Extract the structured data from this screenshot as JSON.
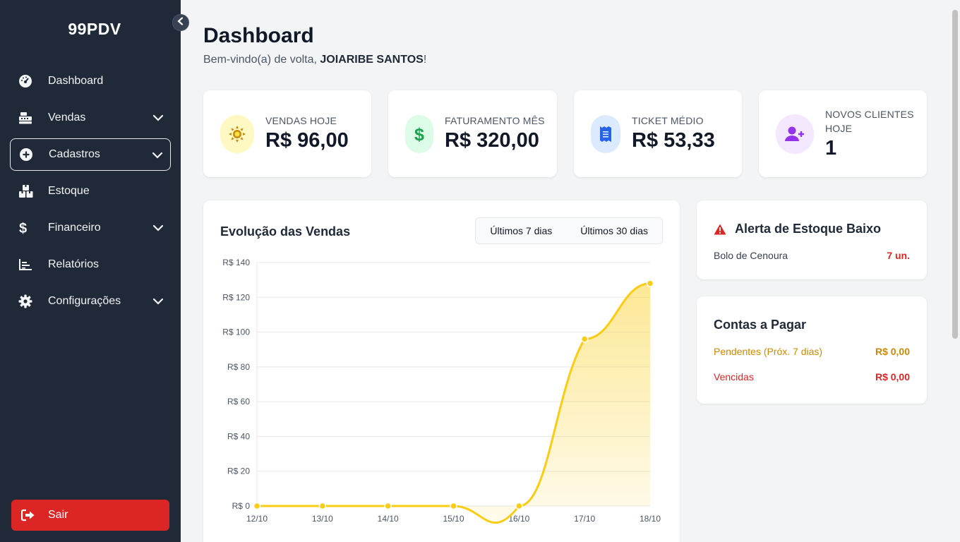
{
  "sidebar": {
    "brand": "99PDV",
    "items": [
      {
        "label": "Dashboard",
        "icon": "gauge-icon"
      },
      {
        "label": "Vendas",
        "icon": "cash-register-icon",
        "expandable": true
      },
      {
        "label": "Cadastros",
        "icon": "plus-circle-icon",
        "expandable": true,
        "active": true
      },
      {
        "label": "Estoque",
        "icon": "boxes-icon"
      },
      {
        "label": "Financeiro",
        "icon": "dollar-icon",
        "expandable": true
      },
      {
        "label": "Relatórios",
        "icon": "chart-icon"
      },
      {
        "label": "Configurações",
        "icon": "gear-icon",
        "expandable": true
      }
    ],
    "logout": "Sair"
  },
  "header": {
    "title": "Dashboard",
    "welcome_prefix": "Bem-vindo(a) de volta, ",
    "user_name": "JOIARIBE SANTOS",
    "welcome_suffix": "!"
  },
  "stats": [
    {
      "label": "VENDAS HOJE",
      "value": "R$ 96,00",
      "icon": "sun-icon",
      "color": "#ca8a04",
      "bg": "#fef9c3"
    },
    {
      "label": "FATURAMENTO MÊS",
      "value": "R$ 320,00",
      "icon": "dollar-icon",
      "color": "#16a34a",
      "bg": "#dcfce7"
    },
    {
      "label": "TICKET MÉDIO",
      "value": "R$ 53,33",
      "icon": "receipt-icon",
      "color": "#2563eb",
      "bg": "#dbeafe"
    },
    {
      "label": "NOVOS CLIENTES HOJE",
      "value": "1",
      "icon": "user-plus-icon",
      "color": "#9333ea",
      "bg": "#f3e8ff"
    }
  ],
  "sales_chart": {
    "title": "Evolução das Vendas",
    "tabs": [
      "Últimos 7 dias",
      "Últimos 30 dias"
    ]
  },
  "chart_data": {
    "type": "area",
    "categories": [
      "12/10",
      "13/10",
      "14/10",
      "15/10",
      "16/10",
      "17/10",
      "18/10"
    ],
    "values": [
      0,
      0,
      0,
      0,
      0,
      96,
      128
    ],
    "yticks": [
      "R$ 0",
      "R$ 20",
      "R$ 40",
      "R$ 60",
      "R$ 80",
      "R$ 100",
      "R$ 120",
      "R$ 140"
    ],
    "ylim": [
      0,
      140
    ],
    "grid": true,
    "color": "#facc15"
  },
  "stock_alert": {
    "title": "Alerta de Estoque Baixo",
    "items": [
      {
        "name": "Bolo de Cenoura",
        "qty": "7 un."
      }
    ]
  },
  "payables": {
    "title": "Contas a Pagar",
    "pending_label": "Pendentes (Próx. 7 dias)",
    "pending_value": "R$ 0,00",
    "overdue_label": "Vencidas",
    "overdue_value": "R$ 0,00"
  },
  "colors": {
    "sidebar_bg": "#1f2937",
    "danger": "#dc2626",
    "warning": "#ca8a04"
  }
}
